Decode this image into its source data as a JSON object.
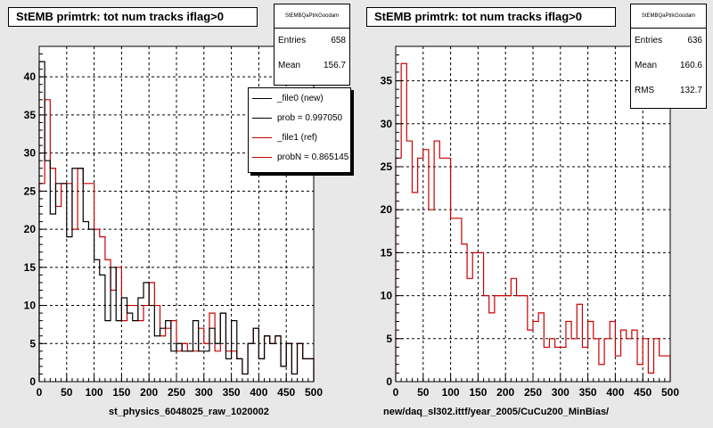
{
  "chart_data": [
    {
      "type": "histogram",
      "title": "StEMB primtrk: tot num tracks iflag>0",
      "xlabel": "st_physics_6048025_raw_1020002",
      "xlim": [
        0,
        500
      ],
      "ylim": [
        0,
        44
      ],
      "xticks": [
        0,
        50,
        100,
        150,
        200,
        250,
        300,
        350,
        400,
        450,
        500
      ],
      "yticks": [
        0,
        5,
        10,
        15,
        20,
        25,
        30,
        35,
        40
      ],
      "grid": true,
      "bin_width": 10,
      "series": [
        {
          "name": "_file0 (new)",
          "color": "#000000",
          "values": [
            42,
            29,
            22,
            26,
            26,
            19,
            28,
            28,
            21,
            20,
            16,
            14,
            8,
            15,
            8,
            11,
            9,
            8,
            11,
            13,
            10,
            6,
            7,
            8,
            4,
            5,
            4,
            4,
            8,
            4,
            4,
            7,
            5,
            9,
            3,
            8,
            3,
            1,
            5,
            7,
            3,
            6,
            5,
            6,
            2,
            5,
            1,
            5,
            3,
            3
          ]
        },
        {
          "name": "_file1 (ref)",
          "color": "#cc0000",
          "values": [
            26,
            37,
            28,
            23,
            26,
            26,
            20,
            28,
            26,
            26,
            20,
            19,
            16,
            12,
            15,
            8,
            10,
            10,
            8,
            10,
            13,
            10,
            6,
            7,
            8,
            4,
            5,
            4,
            4,
            7,
            5,
            9,
            4,
            9,
            4,
            4,
            3,
            1,
            5,
            7,
            3,
            6,
            5,
            6,
            2,
            5,
            1,
            5,
            3,
            3
          ]
        }
      ]
    },
    {
      "type": "histogram",
      "title": "StEMB primtrk: tot num tracks iflag>0",
      "xlabel": "new/daq_sl302.ittf/year_2005/CuCu200_MinBias/",
      "xlim": [
        0,
        500
      ],
      "ylim": [
        0,
        39
      ],
      "xticks": [
        0,
        50,
        100,
        150,
        200,
        250,
        300,
        350,
        400,
        450,
        500
      ],
      "yticks": [
        0,
        5,
        10,
        15,
        20,
        25,
        30,
        35
      ],
      "grid": true,
      "bin_width": 10,
      "series": [
        {
          "name": "",
          "color": "#cc0000",
          "values": [
            26,
            37,
            28,
            22,
            26,
            27,
            20,
            28,
            26,
            26,
            19,
            19,
            16,
            12,
            15,
            15,
            10,
            8,
            10,
            10,
            10,
            12,
            10,
            10,
            6,
            7,
            8,
            4,
            5,
            4,
            4,
            7,
            5,
            9,
            4,
            7,
            5,
            2,
            5,
            7,
            3,
            6,
            5,
            6,
            2,
            5,
            1,
            5,
            3,
            3
          ]
        }
      ]
    }
  ],
  "left": {
    "stats": {
      "name": "StEMBQaPtrkGoodam",
      "entries_label": "Entries",
      "entries": "658",
      "mean_label": "Mean",
      "mean": "156.7"
    },
    "legend": [
      {
        "label": "_file0 (new)",
        "color": "#000000"
      },
      {
        "label": "prob = 0.997050",
        "color": "#000000"
      },
      {
        "label": "_file1 (ref)",
        "color": "#cc0000"
      },
      {
        "label": "probN = 0.865145",
        "color": "#cc0000"
      }
    ]
  },
  "right": {
    "stats": {
      "name": "StEMBQaPtrkGoodam",
      "entries_label": "Entries",
      "entries": "636",
      "mean_label": "Mean",
      "mean": "160.6",
      "rms_label": "RMS",
      "rms": "132.7"
    }
  }
}
